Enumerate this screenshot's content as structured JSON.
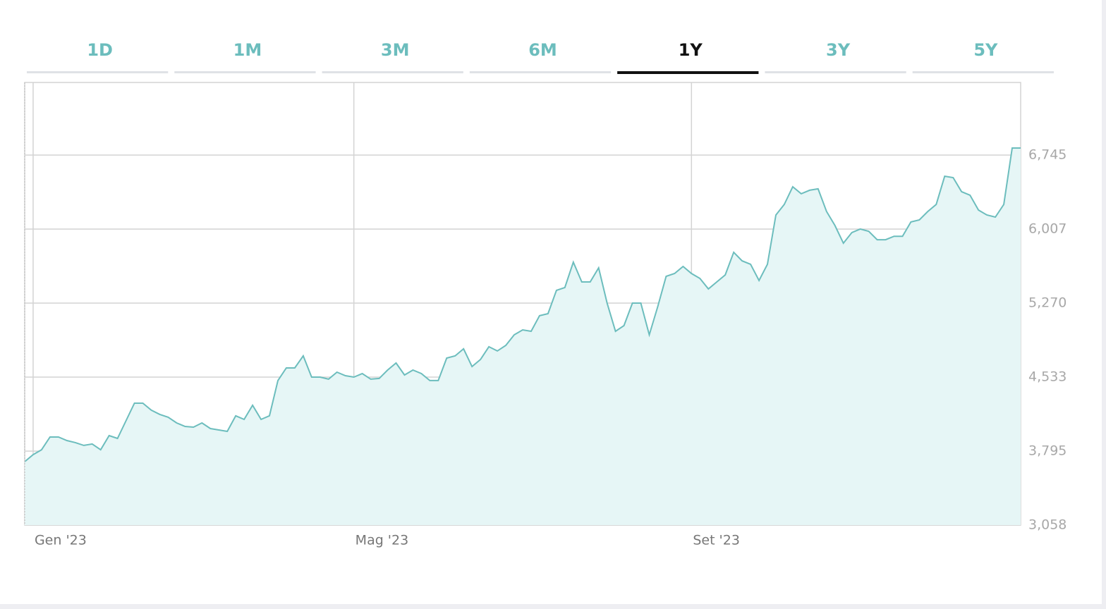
{
  "tabs": [
    "1D",
    "1M",
    "3M",
    "6M",
    "1Y",
    "3Y",
    "5Y"
  ],
  "active_tab": 4,
  "chart_data": {
    "type": "area",
    "categories": [
      null,
      "Gen '23",
      null,
      null,
      null,
      null,
      null,
      null,
      null,
      null,
      null,
      null,
      null,
      null,
      null,
      null,
      null,
      null,
      null,
      null,
      null,
      null,
      null,
      null,
      null,
      null,
      null,
      null,
      null,
      null,
      null,
      null,
      null,
      null,
      null,
      null,
      null,
      null,
      null,
      "Mag '23",
      null,
      null,
      null,
      null,
      null,
      null,
      null,
      null,
      null,
      null,
      null,
      null,
      null,
      null,
      null,
      null,
      null,
      null,
      null,
      null,
      null,
      null,
      null,
      null,
      null,
      null,
      null,
      null,
      null,
      null,
      null,
      null,
      null,
      null,
      null,
      null,
      null,
      null,
      null,
      "Set '23",
      null,
      null,
      null,
      null,
      null,
      null,
      null,
      null,
      null,
      null,
      null,
      null,
      null,
      null,
      null,
      null,
      null,
      null,
      null,
      null,
      null,
      null,
      null,
      null,
      null,
      null,
      null,
      null,
      null,
      null,
      null,
      null,
      null,
      null,
      null,
      null,
      null,
      null,
      null
    ],
    "values": [
      3690,
      3760,
      3809,
      3936,
      3936,
      3901,
      3880,
      3852,
      3866,
      3809,
      3950,
      3922,
      4097,
      4273,
      4273,
      4203,
      4161,
      4133,
      4076,
      4041,
      4034,
      4076,
      4020,
      4006,
      3992,
      4147,
      4111,
      4252,
      4111,
      4147,
      4498,
      4624,
      4624,
      4744,
      4533,
      4533,
      4512,
      4582,
      4547,
      4533,
      4568,
      4512,
      4519,
      4603,
      4673,
      4554,
      4603,
      4568,
      4498,
      4498,
      4722,
      4744,
      4814,
      4638,
      4708,
      4835,
      4793,
      4849,
      4954,
      5003,
      4989,
      5144,
      5165,
      5397,
      5425,
      5678,
      5481,
      5481,
      5621,
      5270,
      4989,
      5045,
      5270,
      5270,
      4954,
      5235,
      5537,
      5565,
      5635,
      5565,
      5516,
      5411,
      5481,
      5551,
      5776,
      5691,
      5657,
      5495,
      5657,
      6148,
      6253,
      6429,
      6359,
      6394,
      6408,
      6183,
      6043,
      5867,
      5973,
      6008,
      5985,
      5901,
      5901,
      5936,
      5936,
      6078,
      6099,
      6183,
      6253,
      6534,
      6520,
      6380,
      6345,
      6197,
      6148,
      6127,
      6253,
      6815,
      6815
    ],
    "color": "#6cbdbd",
    "fill": "#e6f6f6",
    "ylim": [
      3058,
      7468
    ],
    "yticks": [
      {
        "value": 3058,
        "label": "3,058"
      },
      {
        "value": 3795,
        "label": "3,795"
      },
      {
        "value": 4533,
        "label": "4,533"
      },
      {
        "value": 5270,
        "label": "5,270"
      },
      {
        "value": 6007,
        "label": "6,007"
      },
      {
        "value": 6745,
        "label": "6,745"
      }
    ],
    "grid": true
  }
}
